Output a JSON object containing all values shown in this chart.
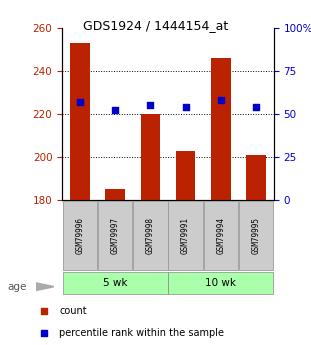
{
  "title": "GDS1924 / 1444154_at",
  "samples": [
    "GSM79996",
    "GSM79997",
    "GSM79998",
    "GSM79991",
    "GSM79994",
    "GSM79995"
  ],
  "count_values": [
    253,
    185,
    220,
    203,
    246,
    201
  ],
  "percentile_values": [
    57,
    52,
    55,
    54,
    58,
    54
  ],
  "ylim_left": [
    180,
    260
  ],
  "ylim_right": [
    0,
    100
  ],
  "yticks_left": [
    180,
    200,
    220,
    240,
    260
  ],
  "yticks_right": [
    0,
    25,
    50,
    75,
    100
  ],
  "ytick_labels_right": [
    "0",
    "25",
    "50",
    "75",
    "100%"
  ],
  "bar_color": "#bb2200",
  "dot_color": "#0000cc",
  "bar_bottom": 180,
  "groups": [
    {
      "label": "5 wk",
      "indices": [
        0,
        1,
        2
      ]
    },
    {
      "label": "10 wk",
      "indices": [
        3,
        4,
        5
      ]
    }
  ],
  "group_color": "#aaffaa",
  "age_label": "age",
  "legend": [
    {
      "color": "#bb2200",
      "label": "count"
    },
    {
      "color": "#0000cc",
      "label": "percentile rank within the sample"
    }
  ],
  "grid_color": "#000000",
  "tick_label_color_left": "#bb2200",
  "tick_label_color_right": "#0000cc"
}
